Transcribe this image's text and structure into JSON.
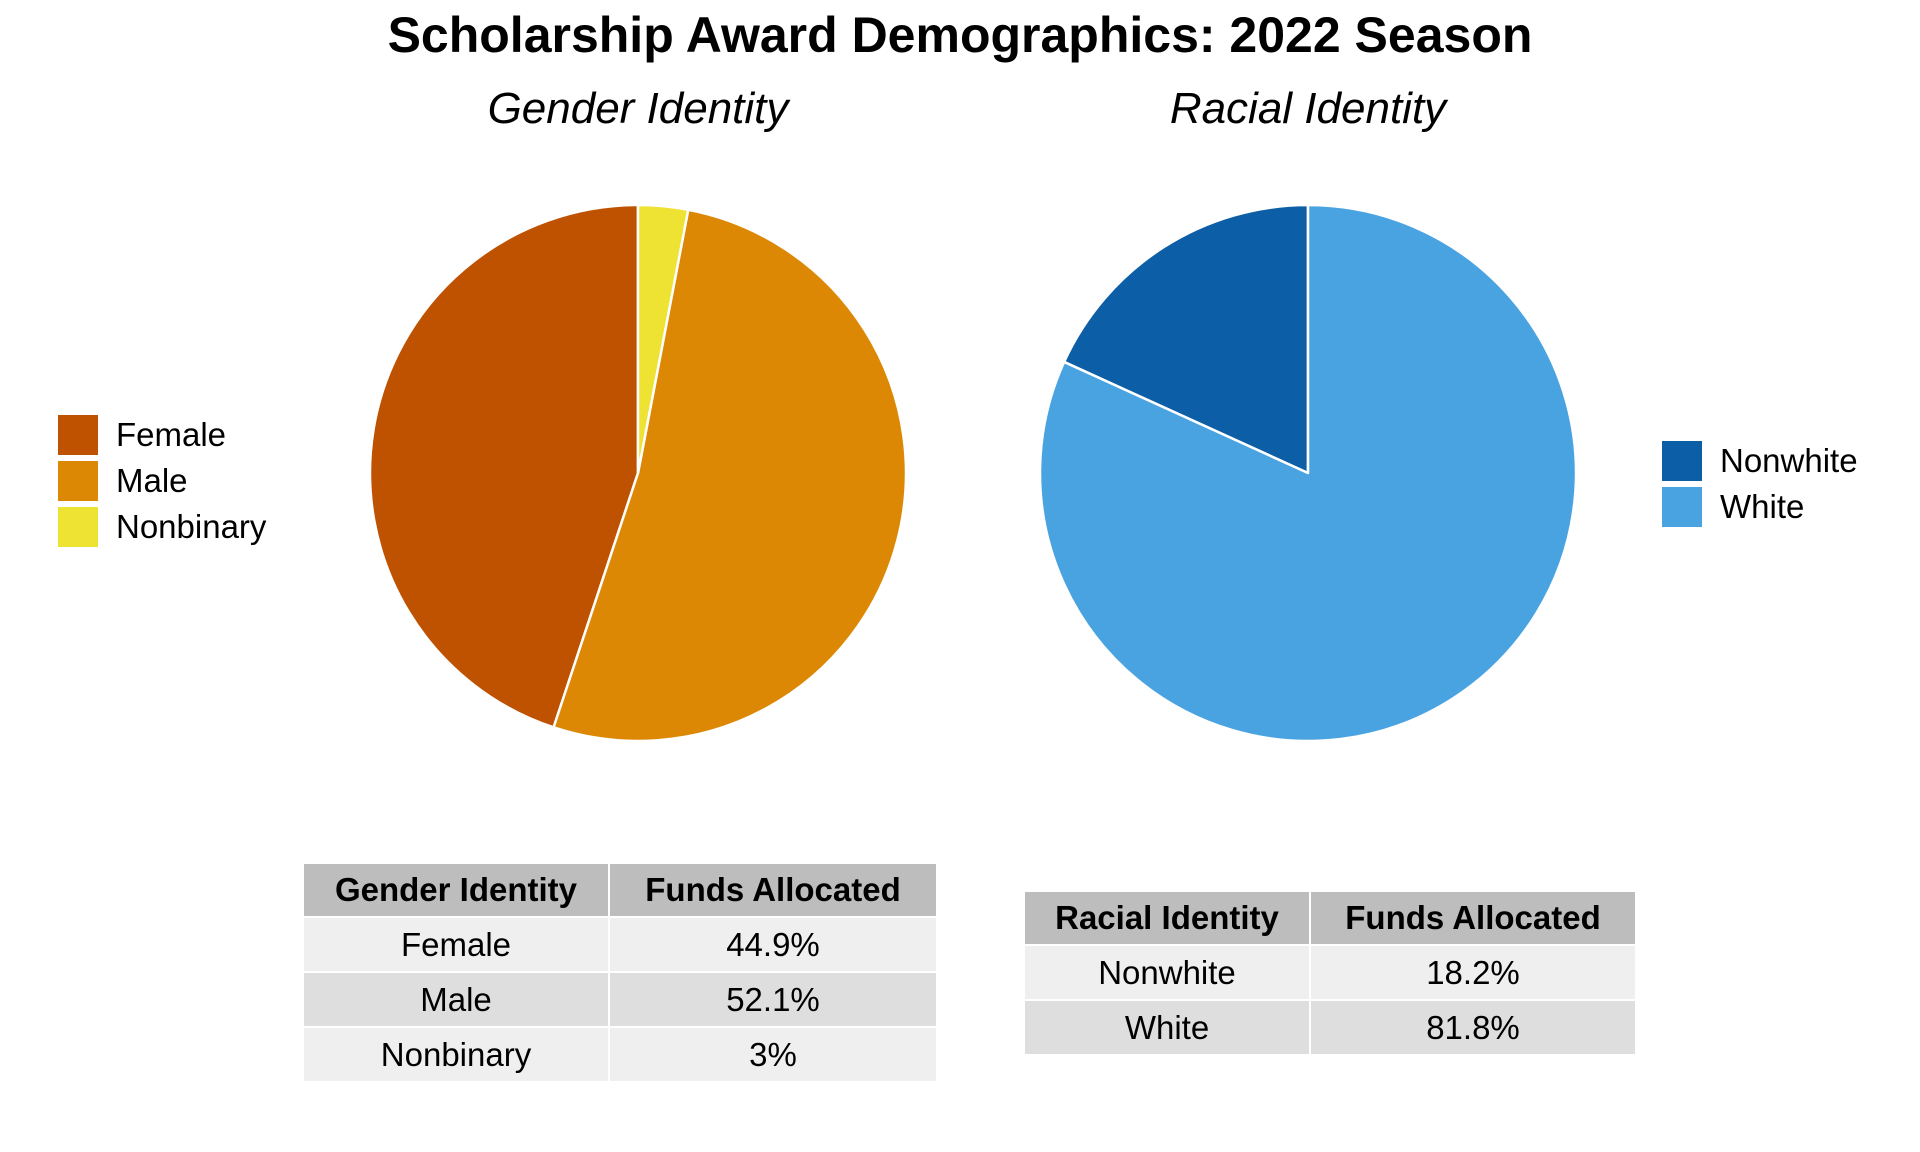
{
  "title": "Scholarship Award Demographics: 2022 Season",
  "chart_data": [
    {
      "type": "pie",
      "title": "Gender Identity",
      "categories": [
        "Female",
        "Male",
        "Nonbinary"
      ],
      "values": [
        44.9,
        52.1,
        3.0
      ],
      "unit": "%",
      "start_angle_deg": 0,
      "direction": "counterclockwise",
      "colors": [
        "#bf5200",
        "#dd8804",
        "#eee333"
      ],
      "legend_position": "left"
    },
    {
      "type": "pie",
      "title": "Racial Identity",
      "categories": [
        "Nonwhite",
        "White"
      ],
      "values": [
        18.2,
        81.8
      ],
      "unit": "%",
      "start_angle_deg": 0,
      "direction": "counterclockwise",
      "colors": [
        "#0c5ea6",
        "#4aa3e1"
      ],
      "legend_position": "right"
    },
    {
      "type": "table",
      "headers": [
        "Gender Identity",
        "Funds Allocated"
      ],
      "rows": [
        [
          "Female",
          "44.9%"
        ],
        [
          "Male",
          "52.1%"
        ],
        [
          "Nonbinary",
          "3%"
        ]
      ]
    },
    {
      "type": "table",
      "headers": [
        "Racial Identity",
        "Funds Allocated"
      ],
      "rows": [
        [
          "Nonwhite",
          "18.2%"
        ],
        [
          "White",
          "81.8%"
        ]
      ]
    }
  ]
}
